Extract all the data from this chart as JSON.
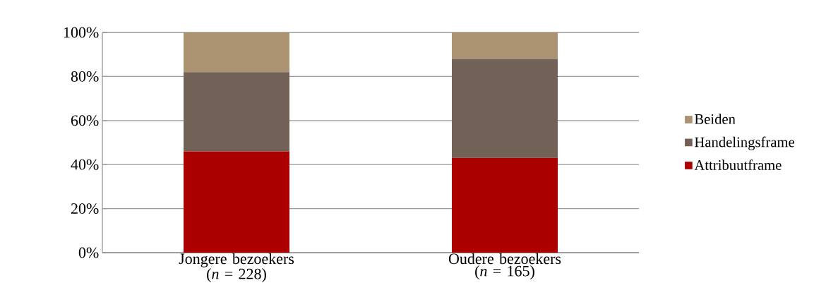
{
  "chart_data": {
    "type": "bar",
    "stacked": true,
    "categories": [
      "Jongere bezoekers (*n* = 228)",
      "Oudere bezoekers (*n* = 165)"
    ],
    "series": [
      {
        "name": "Attribuutframe",
        "color": "#ab0000",
        "values": [
          46,
          43
        ]
      },
      {
        "name": "Handelingsframe",
        "color": "#716156",
        "values": [
          36,
          45
        ]
      },
      {
        "name": "Beiden",
        "color": "#ab9371",
        "values": [
          18,
          12
        ]
      }
    ],
    "ylim": [
      0,
      100
    ],
    "yticks": [
      {
        "value": 0,
        "label": "0%"
      },
      {
        "value": 20,
        "label": "20%"
      },
      {
        "value": 40,
        "label": "40%"
      },
      {
        "value": 60,
        "label": "60%"
      },
      {
        "value": 80,
        "label": "80%"
      },
      {
        "value": 100,
        "label": "100%"
      }
    ],
    "grid": "y",
    "legend": "right"
  }
}
